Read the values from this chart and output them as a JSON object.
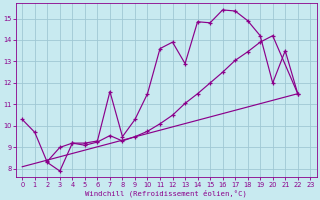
{
  "background_color": "#c8eaf0",
  "grid_color": "#a0c8d4",
  "line_color": "#8B008B",
  "xlabel": "Windchill (Refroidissement éolien,°C)",
  "ylim_min": 7.6,
  "ylim_max": 15.7,
  "xlim_min": -0.5,
  "xlim_max": 23.5,
  "ytick_vals": [
    8,
    9,
    10,
    11,
    12,
    13,
    14,
    15
  ],
  "xtick_vals": [
    0,
    1,
    2,
    3,
    4,
    5,
    6,
    7,
    8,
    9,
    10,
    11,
    12,
    13,
    14,
    15,
    16,
    17,
    18,
    19,
    20,
    21,
    22,
    23
  ],
  "curve1_x": [
    0,
    1,
    2,
    3,
    4,
    5,
    6,
    7,
    8,
    9,
    10,
    11,
    12,
    13,
    14,
    15,
    16,
    17,
    18,
    19,
    20,
    21,
    22
  ],
  "curve1_y": [
    10.3,
    9.7,
    8.3,
    7.9,
    9.2,
    9.2,
    9.3,
    11.6,
    9.5,
    10.3,
    11.5,
    13.6,
    13.9,
    12.9,
    14.85,
    14.8,
    15.4,
    15.35,
    14.9,
    14.2,
    12.0,
    13.5,
    11.5
  ],
  "curve2_x": [
    2,
    3,
    4,
    5,
    6,
    7,
    8,
    9,
    10,
    11,
    12,
    13,
    14,
    15,
    16,
    17,
    18,
    19,
    20,
    22
  ],
  "curve2_y": [
    8.35,
    9.0,
    9.2,
    9.1,
    9.25,
    9.55,
    9.3,
    9.5,
    9.75,
    10.1,
    10.5,
    11.05,
    11.5,
    12.0,
    12.5,
    13.05,
    13.45,
    13.9,
    14.2,
    11.5
  ],
  "curve3_x": [
    0,
    22
  ],
  "curve3_y": [
    8.1,
    11.5
  ]
}
